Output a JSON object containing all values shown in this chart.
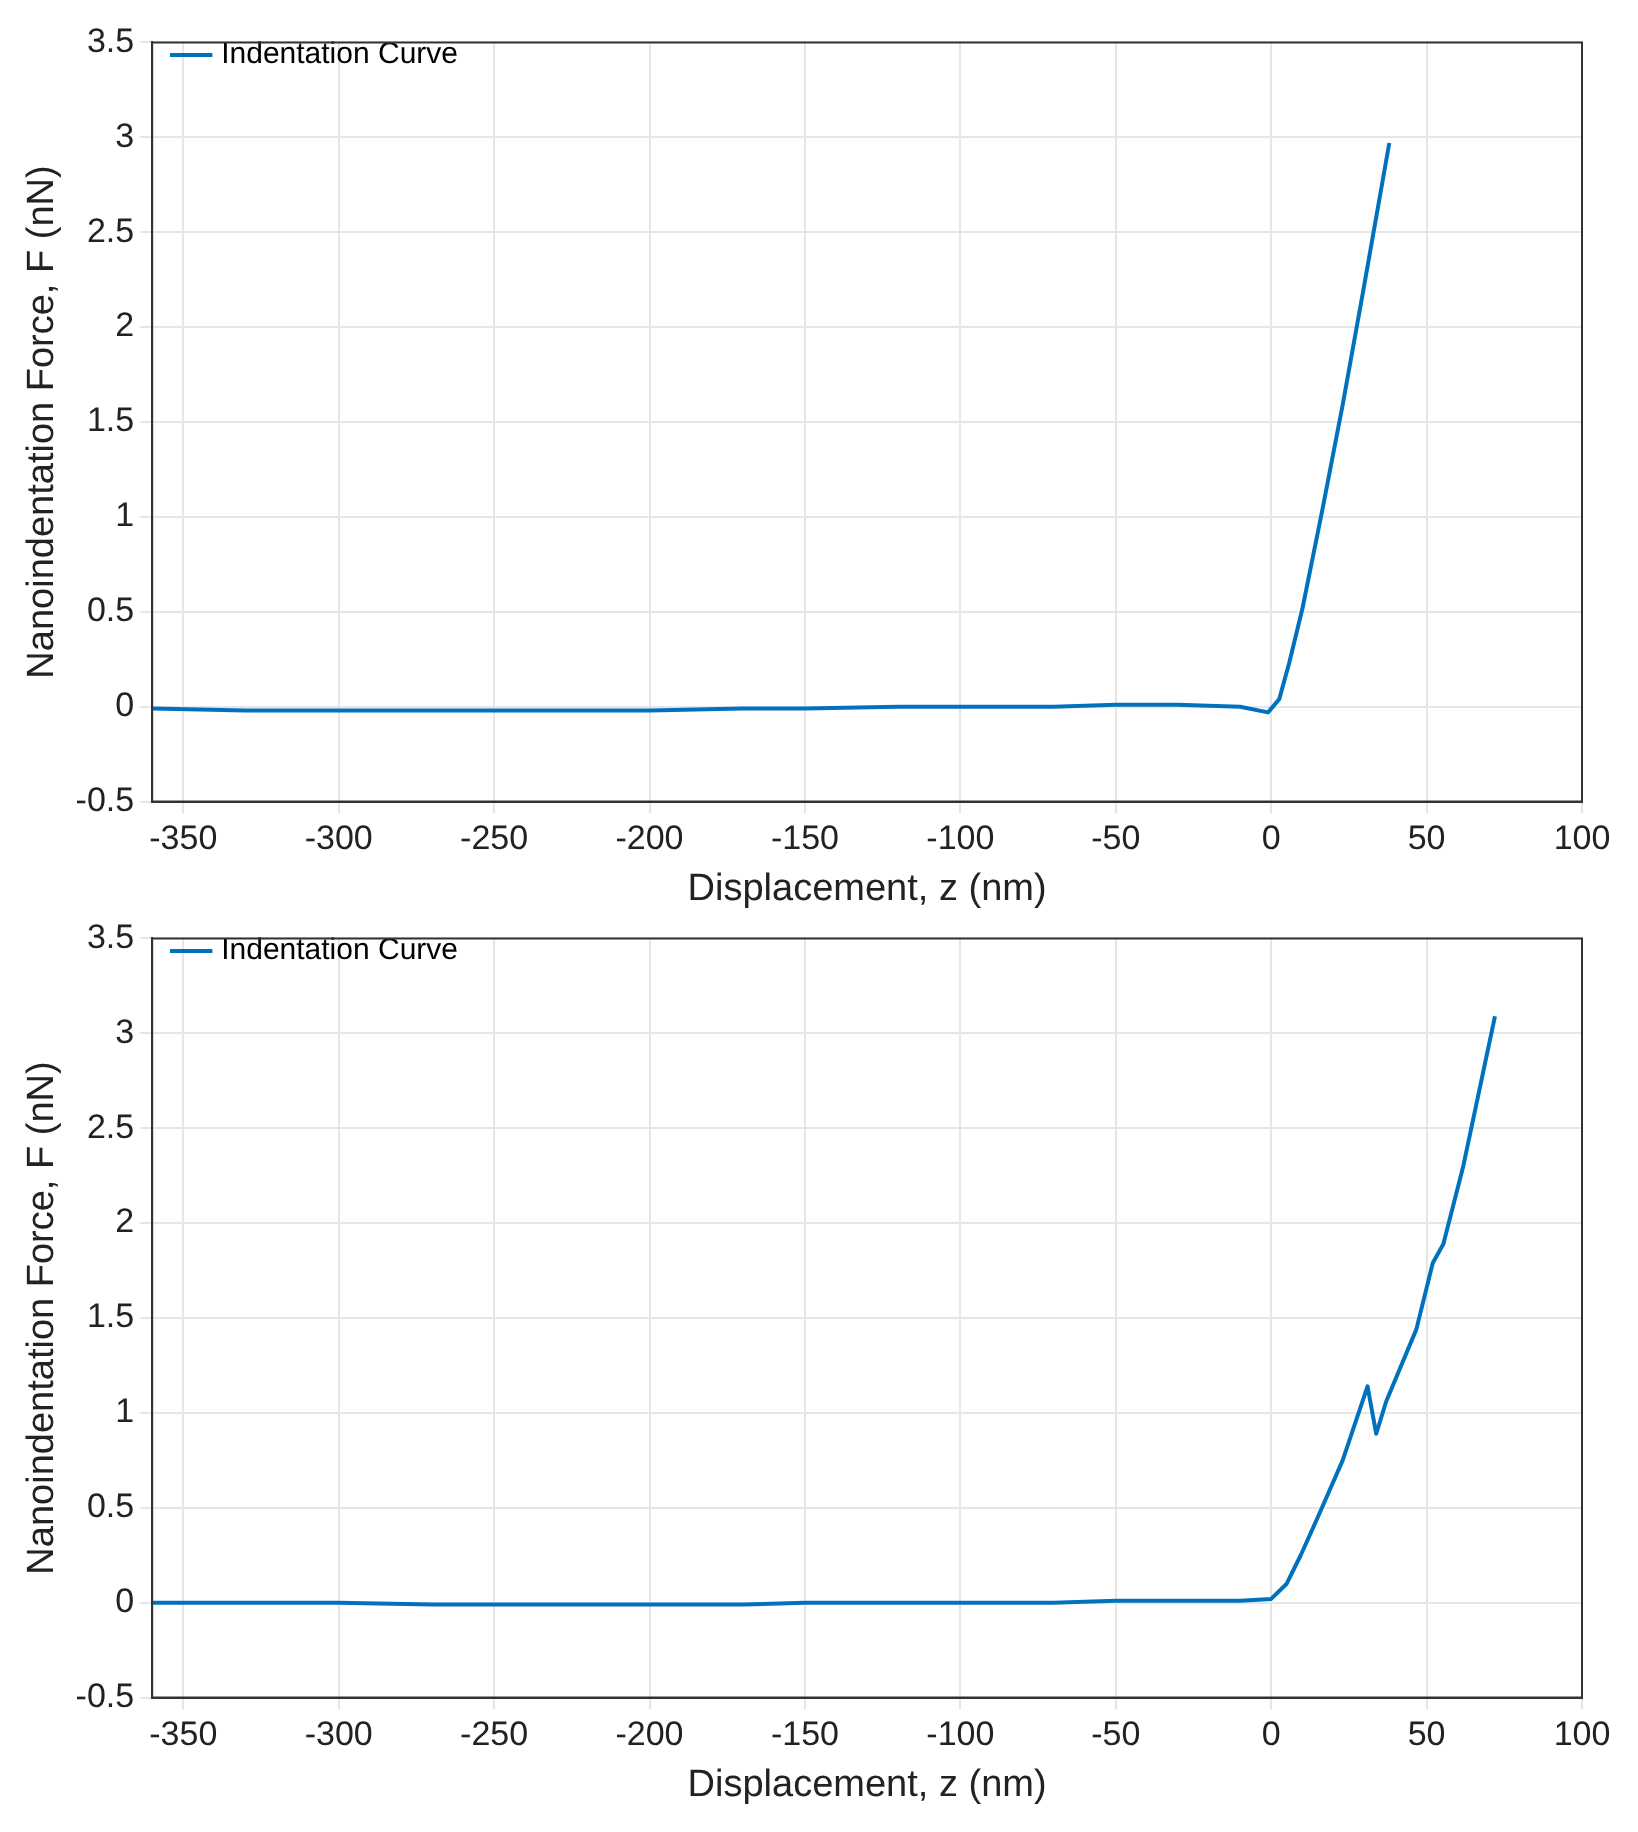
{
  "chart_data": [
    {
      "type": "line",
      "xlabel": "Displacement, z (nm)",
      "ylabel": "Nanoindentation Force, F (nN)",
      "xlim": [
        -360,
        100
      ],
      "ylim": [
        -0.5,
        3.5
      ],
      "xticks": [
        -350,
        -300,
        -250,
        -200,
        -150,
        -100,
        -50,
        0,
        50,
        100
      ],
      "yticks": [
        -0.5,
        0,
        0.5,
        1,
        1.5,
        2,
        2.5,
        3,
        3.5
      ],
      "grid": true,
      "legend": "top left",
      "marker": "none",
      "line_style": "solid",
      "series": [
        {
          "name": "Indentation Curve",
          "color": "#0072bd",
          "x": [
            -360,
            -330,
            -300,
            -270,
            -250,
            -220,
            -200,
            -170,
            -150,
            -120,
            -100,
            -70,
            -50,
            -30,
            -10,
            -1,
            2.6,
            5.8,
            10.1,
            16.5,
            23,
            29.5,
            38
          ],
          "values": [
            -0.01,
            -0.02,
            -0.02,
            -0.02,
            -0.02,
            -0.02,
            -0.02,
            -0.01,
            -0.01,
            0,
            0,
            0,
            0.01,
            0.01,
            0,
            -0.03,
            0.04,
            0.23,
            0.52,
            1.04,
            1.59,
            2.18,
            2.97
          ]
        }
      ]
    },
    {
      "type": "line",
      "xlabel": "Displacement, z (nm)",
      "ylabel": "Nanoindentation Force, F (nN)",
      "xlim": [
        -360,
        100
      ],
      "ylim": [
        -0.5,
        3.5
      ],
      "xticks": [
        -350,
        -300,
        -250,
        -200,
        -150,
        -100,
        -50,
        0,
        50,
        100
      ],
      "yticks": [
        -0.5,
        0,
        0.5,
        1,
        1.5,
        2,
        2.5,
        3,
        3.5
      ],
      "grid": true,
      "legend": "top left",
      "marker": "none",
      "line_style": "solid",
      "series": [
        {
          "name": "Indentation Curve",
          "color": "#0072bd",
          "x": [
            -360,
            -330,
            -300,
            -270,
            -250,
            -220,
            -200,
            -170,
            -150,
            -120,
            -100,
            -70,
            -50,
            -30,
            -10,
            0,
            5,
            9.5,
            15,
            23,
            31,
            33.8,
            37,
            46.7,
            52,
            55.4,
            61.8,
            72
          ],
          "values": [
            0,
            0,
            0,
            -0.01,
            -0.01,
            -0.01,
            -0.01,
            -0.01,
            0,
            0,
            0,
            0,
            0.01,
            0.01,
            0.01,
            0.02,
            0.1,
            0.25,
            0.45,
            0.75,
            1.14,
            0.89,
            1.06,
            1.44,
            1.79,
            1.89,
            2.3,
            3.09
          ]
        }
      ]
    }
  ]
}
